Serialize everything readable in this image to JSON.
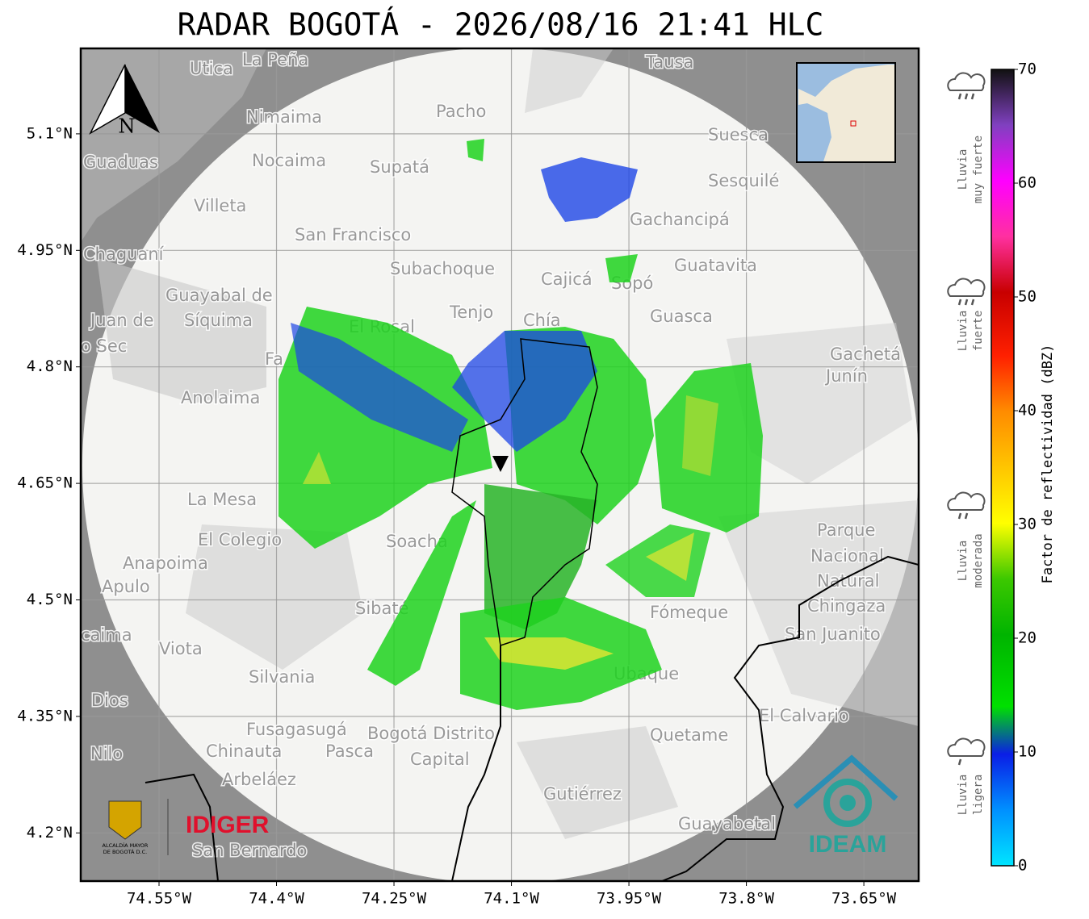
{
  "title": "RADAR BOGOTÁ - 2026/08/16 21:41 HLC",
  "map": {
    "xlim": [
      -74.65,
      -73.58
    ],
    "ylim": [
      4.138,
      5.21
    ],
    "xticks": [
      {
        "value": -74.55,
        "label": "74.55°W"
      },
      {
        "value": -74.4,
        "label": "74.4°W"
      },
      {
        "value": -74.25,
        "label": "74.25°W"
      },
      {
        "value": -74.1,
        "label": "74.1°W"
      },
      {
        "value": -73.95,
        "label": "73.95°W"
      },
      {
        "value": -73.8,
        "label": "73.8°W"
      },
      {
        "value": -73.65,
        "label": "73.65°W"
      }
    ],
    "yticks": [
      {
        "value": 5.1,
        "label": "5.1°N"
      },
      {
        "value": 4.95,
        "label": "4.95°N"
      },
      {
        "value": 4.8,
        "label": "4.8°N"
      },
      {
        "value": 4.65,
        "label": "4.65°N"
      },
      {
        "value": 4.5,
        "label": "4.5°N"
      },
      {
        "value": 4.35,
        "label": "4.35°N"
      },
      {
        "value": 4.2,
        "label": "4.2°N"
      }
    ],
    "north": "N",
    "places": [
      "La Peña",
      "Utica",
      "Tausa",
      "Nimaima",
      "Pacho",
      "Suesca",
      "Guaduas",
      "Nocaima",
      "Supatá",
      "Sesquilé",
      "Villeta",
      "Gachancipá",
      "San Francisco",
      "Chaguaní",
      "Guatavita",
      "Subachoque",
      "Cajicá",
      "Sopó",
      "Guayabal de",
      "Síquima",
      "Juan de",
      "o Sec",
      "Tenjo",
      "Chía",
      "Guasca",
      "El Rosal",
      "Fa",
      "Gachetá",
      "Junín",
      "Anolaima",
      "La Mesa",
      "Soacha",
      "El Colegio",
      "Anapoima",
      "Apulo",
      "Sibaté",
      "Parque",
      "Nacional",
      "Natural",
      "Chingaza",
      "San Juanito",
      "Fómeque",
      "caima",
      "Viota",
      "Silvania",
      "Dios",
      "Nilo",
      "Fusagasugá",
      "Pasca",
      "Bogotá Distrito",
      "Capital",
      "Chinauta",
      "Arbeláez",
      "Quetame",
      "El Calvario",
      "Gutiérrez",
      "Guayabetal",
      "San Bernardo",
      "Ubaque"
    ]
  },
  "logos": {
    "alcaldia_line1": "ALCALDÍA MAYOR",
    "alcaldia_line2": "DE BOGOTÁ D.C.",
    "idiger": "IDIGER",
    "ideam": "IDEAM"
  },
  "colorbar": {
    "label": "Factor de reflectividad (dBZ)",
    "lim": [
      0,
      70
    ],
    "ticks": [
      0,
      10,
      20,
      30,
      40,
      50,
      60,
      70
    ],
    "levels": [
      {
        "line1": "Lluvia",
        "line2": "ligera"
      },
      {
        "line1": "Lluvia",
        "line2": "moderada"
      },
      {
        "line1": "Lluvia",
        "line2": "fuerte"
      },
      {
        "line1": "Lluvia",
        "line2": "muy fuerte"
      }
    ]
  }
}
